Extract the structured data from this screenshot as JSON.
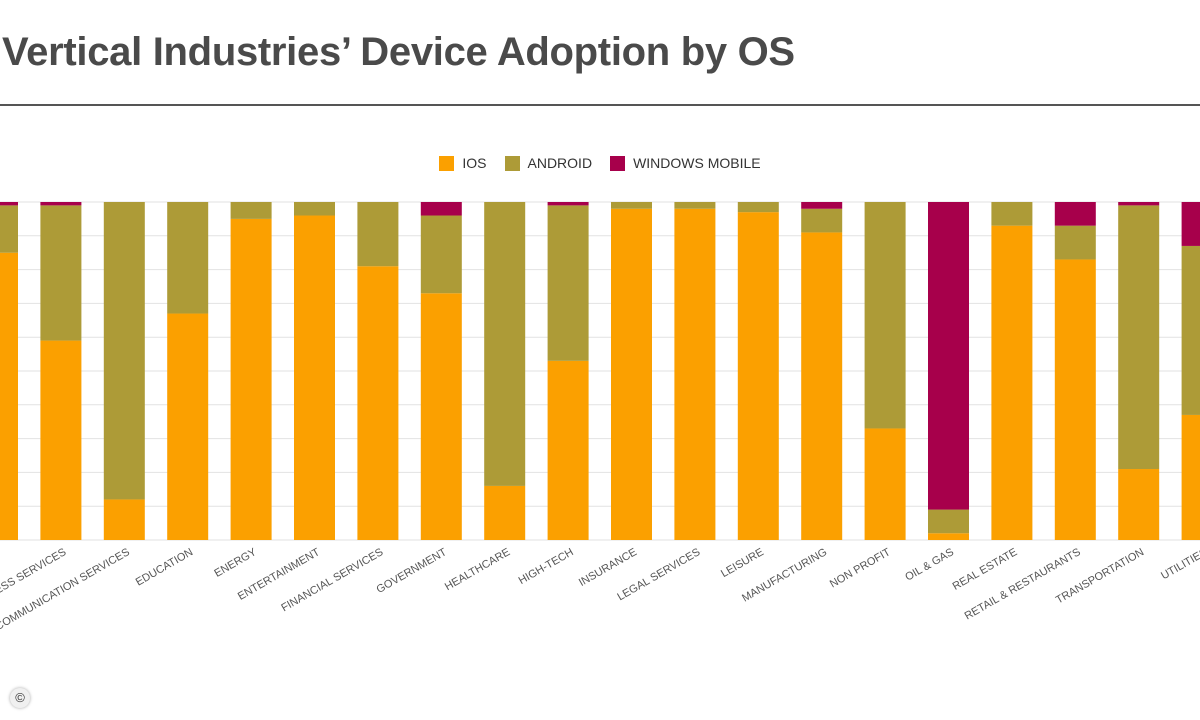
{
  "colors": {
    "ios": "#fba000",
    "android": "#ad9b37",
    "windows": "#a7004b",
    "grid": "#e2e2e2",
    "title": "#4a4a4a"
  },
  "chart_data": {
    "type": "bar",
    "stacked": true,
    "title": "Vertical Industries’ Device Adoption by OS",
    "legend_position": "top-center",
    "grid": true,
    "ylim": [
      0,
      100
    ],
    "categories": [
      "",
      "BUSINESS SERVICES",
      "COMMUNICATION SERVICES",
      "EDUCATION",
      "ENERGY",
      "ENTERTAINMENT",
      "FINANCIAL SERVICES",
      "GOVERNMENT",
      "HEALTHCARE",
      "HIGH-TECH",
      "INSURANCE",
      "LEGAL SERVICES",
      "LEISURE",
      "MANUFACTURING",
      "NON PROFIT",
      "OIL & GAS",
      "REAL ESTATE",
      "RETAIL & RESTAURANTS",
      "TRANSPORTATION",
      "UTILITIES"
    ],
    "visible_category_labels": [
      "",
      "ESS SERVICES",
      "COMMUNICATION SERVICES",
      "EDUCATION",
      "ENERGY",
      "ENTERTAINMENT",
      "FINANCIAL SERVICES",
      "GOVERNMENT",
      "HEALTHCARE",
      "HIGH-TECH",
      "INSURANCE",
      "LEGAL SERVICES",
      "LEISURE",
      "MANUFACTURING",
      "NON PROFIT",
      "OIL & GAS",
      "REAL ESTATE",
      "RETAIL & RESTAURANTS",
      "TRANSPORTATION",
      "UTILITIES"
    ],
    "series": [
      {
        "name": "IOS",
        "values": [
          85,
          59,
          12,
          67,
          95,
          96,
          81,
          73,
          16,
          53,
          98,
          98,
          97,
          91,
          33,
          2,
          93,
          83,
          21,
          37
        ]
      },
      {
        "name": "ANDROID",
        "values": [
          14,
          40,
          88,
          33,
          5,
          4,
          19,
          23,
          84,
          46,
          2,
          2,
          3,
          7,
          67,
          7,
          7,
          10,
          78,
          50
        ]
      },
      {
        "name": "WINDOWS MOBILE",
        "values": [
          1,
          1,
          0,
          0,
          0,
          0,
          0,
          4,
          0,
          1,
          0,
          0,
          0,
          2,
          0,
          91,
          0,
          7,
          1,
          13
        ]
      }
    ]
  },
  "legend": [
    {
      "label": "IOS",
      "color": "#fba000"
    },
    {
      "label": "ANDROID",
      "color": "#ad9b37"
    },
    {
      "label": "WINDOWS MOBILE",
      "color": "#a7004b"
    }
  ],
  "copyright_symbol": "©"
}
